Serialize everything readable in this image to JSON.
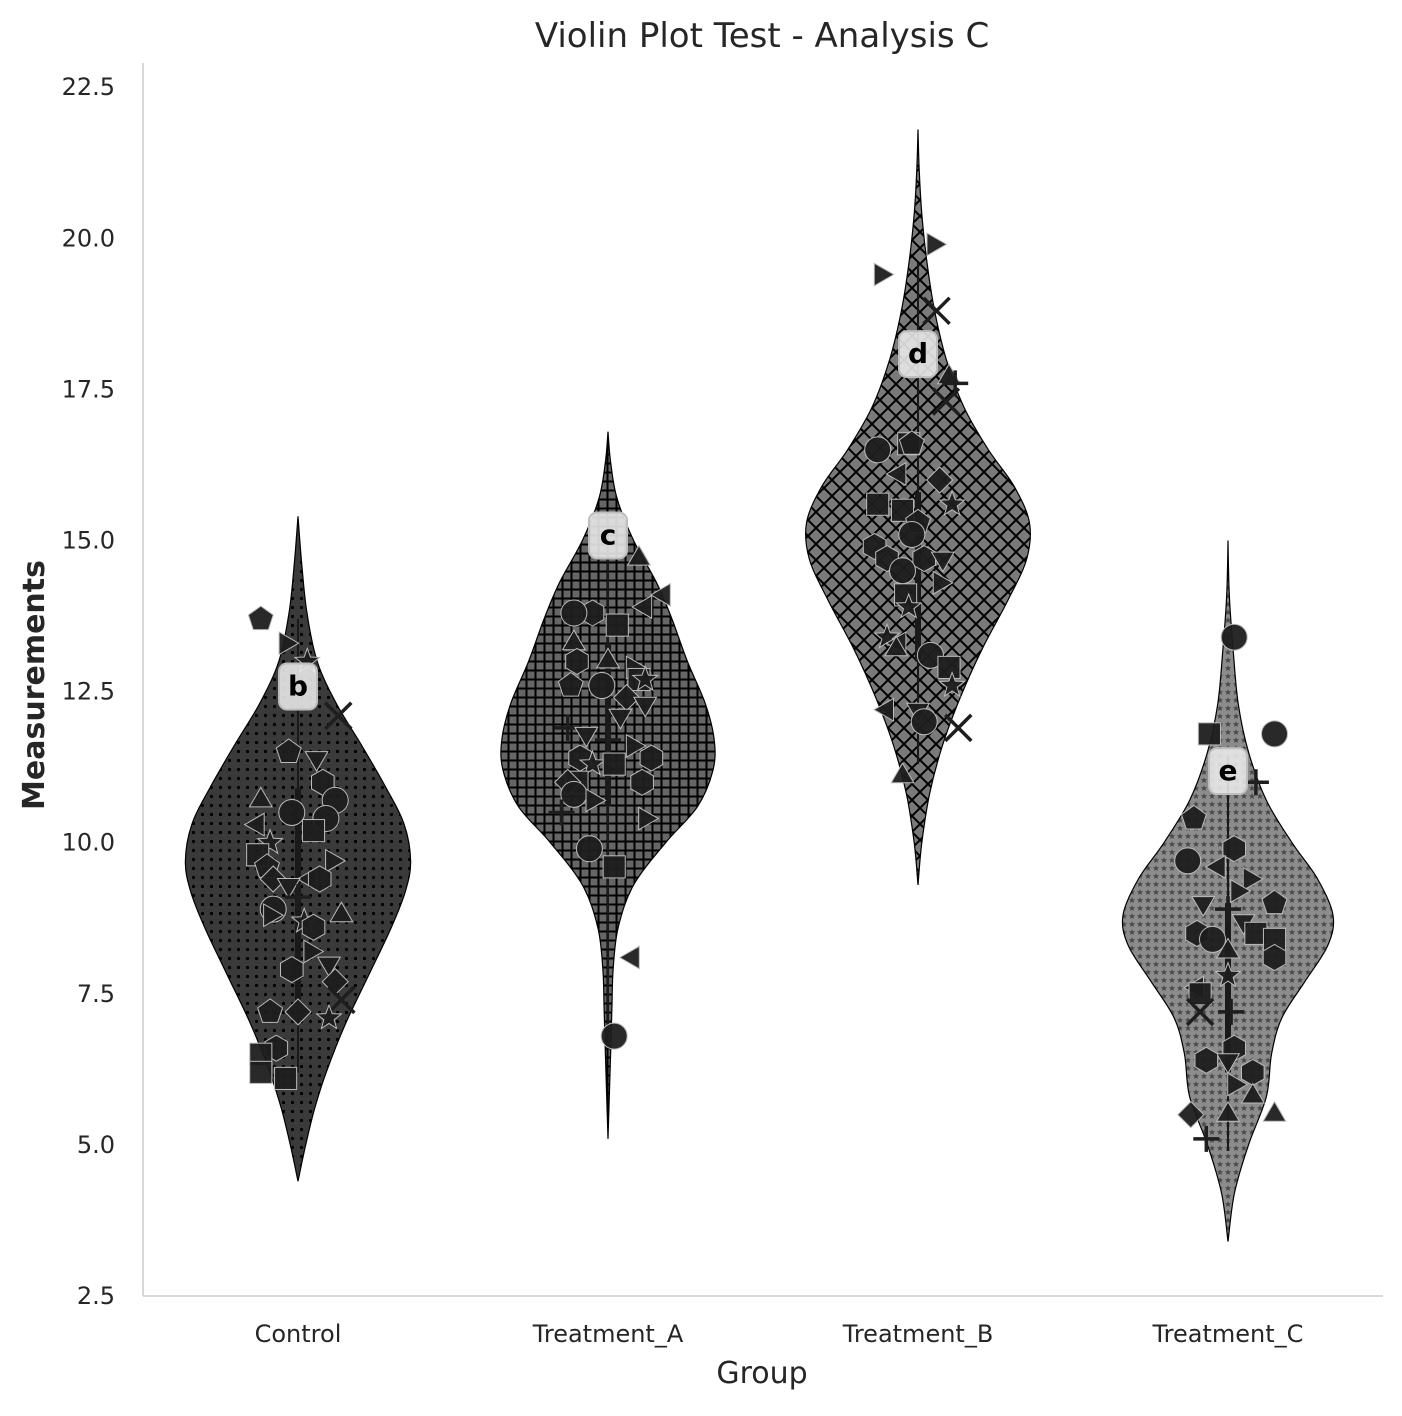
{
  "chart_data": {
    "type": "violin",
    "title": "Violin Plot Test - Analysis C",
    "xlabel": "Group",
    "ylabel": "Measurements",
    "ylim": [
      2.5,
      22.9
    ],
    "yticks": [
      "2.5",
      "5.0",
      "7.5",
      "10.0",
      "12.5",
      "15.0",
      "17.5",
      "20.0",
      "22.5"
    ],
    "grid": false,
    "categories": [
      "Control",
      "Treatment_A",
      "Treatment_B",
      "Treatment_C"
    ],
    "groups": [
      {
        "name": "Control",
        "letter": "b",
        "letter_y": 12.6,
        "fill": "#3a3a3a",
        "pattern": "dots",
        "min": 4.4,
        "max": 15.4,
        "density": [
          [
            4.4,
            0.0
          ],
          [
            5.0,
            0.06
          ],
          [
            5.6,
            0.13
          ],
          [
            6.2,
            0.22
          ],
          [
            7.0,
            0.37
          ],
          [
            7.8,
            0.55
          ],
          [
            8.6,
            0.73
          ],
          [
            9.2,
            0.84
          ],
          [
            9.7,
            0.88
          ],
          [
            10.3,
            0.83
          ],
          [
            10.9,
            0.69
          ],
          [
            11.6,
            0.5
          ],
          [
            12.3,
            0.3
          ],
          [
            13.0,
            0.15
          ],
          [
            13.8,
            0.07
          ],
          [
            14.6,
            0.03
          ],
          [
            15.4,
            0.0
          ]
        ],
        "median": 9.5,
        "q1": 7.4,
        "q3": 10.9,
        "whisker": [
          6.2,
          13.7
        ],
        "points": [
          [
            -0.12,
            13.7,
            "pentagon"
          ],
          [
            -0.04,
            13.3,
            "triangle-right"
          ],
          [
            0.03,
            13.0,
            "star"
          ],
          [
            0.13,
            12.1,
            "x"
          ],
          [
            -0.03,
            11.5,
            "pentagon"
          ],
          [
            0.06,
            11.4,
            "triangle-down"
          ],
          [
            0.08,
            11.0,
            "hexagon"
          ],
          [
            0.12,
            10.7,
            "circle"
          ],
          [
            -0.12,
            10.7,
            "triangle-up"
          ],
          [
            -0.02,
            10.5,
            "circle"
          ],
          [
            0.09,
            10.4,
            "circle"
          ],
          [
            -0.13,
            10.3,
            "triangle-left"
          ],
          [
            0.05,
            10.2,
            "square"
          ],
          [
            -0.09,
            10.0,
            "star"
          ],
          [
            -0.13,
            9.8,
            "square"
          ],
          [
            0.11,
            9.7,
            "triangle-right"
          ],
          [
            -0.1,
            9.6,
            "pentagon"
          ],
          [
            -0.08,
            9.4,
            "diamond"
          ],
          [
            0.04,
            9.4,
            "triangle-left"
          ],
          [
            -0.03,
            9.3,
            "triangle-down"
          ],
          [
            0.07,
            9.4,
            "hexagon"
          ],
          [
            0.0,
            9.1,
            "plus"
          ],
          [
            -0.08,
            8.9,
            "circle"
          ],
          [
            0.02,
            8.7,
            "star"
          ],
          [
            0.14,
            8.8,
            "triangle-up"
          ],
          [
            -0.09,
            8.8,
            "triangle-right"
          ],
          [
            0.05,
            8.6,
            "hexagon"
          ],
          [
            0.04,
            8.2,
            "triangle-right"
          ],
          [
            0.1,
            8.0,
            "triangle-down"
          ],
          [
            -0.02,
            7.9,
            "hexagon"
          ],
          [
            0.12,
            7.7,
            "diamond"
          ],
          [
            0.14,
            7.4,
            "x"
          ],
          [
            0.0,
            7.2,
            "diamond"
          ],
          [
            -0.09,
            7.2,
            "pentagon"
          ],
          [
            0.1,
            7.1,
            "star"
          ],
          [
            -0.07,
            6.6,
            "hexagon"
          ],
          [
            -0.12,
            6.5,
            "square"
          ],
          [
            -0.12,
            6.2,
            "square"
          ],
          [
            -0.04,
            6.1,
            "square"
          ]
        ]
      },
      {
        "name": "Treatment_A",
        "letter": "c",
        "letter_y": 15.1,
        "fill": "#666666",
        "pattern": "grid",
        "min": 5.1,
        "max": 16.8,
        "density": [
          [
            5.1,
            0.0
          ],
          [
            5.8,
            0.01
          ],
          [
            6.5,
            0.02
          ],
          [
            7.2,
            0.03
          ],
          [
            7.9,
            0.04
          ],
          [
            8.6,
            0.08
          ],
          [
            9.3,
            0.2
          ],
          [
            10.0,
            0.45
          ],
          [
            10.6,
            0.7
          ],
          [
            11.2,
            0.82
          ],
          [
            11.7,
            0.83
          ],
          [
            12.3,
            0.76
          ],
          [
            13.0,
            0.62
          ],
          [
            13.7,
            0.5
          ],
          [
            14.3,
            0.38
          ],
          [
            15.0,
            0.2
          ],
          [
            15.7,
            0.07
          ],
          [
            16.3,
            0.02
          ],
          [
            16.8,
            0.0
          ]
        ],
        "median": 11.9,
        "q1": 10.6,
        "q3": 13.3,
        "whisker": [
          6.8,
          15.3
        ],
        "points": [
          [
            0.1,
            14.7,
            "triangle-up"
          ],
          [
            0.18,
            14.1,
            "triangle-left"
          ],
          [
            0.12,
            13.9,
            "triangle-left"
          ],
          [
            -0.05,
            13.8,
            "hexagon"
          ],
          [
            -0.11,
            13.8,
            "circle"
          ],
          [
            0.03,
            13.6,
            "square"
          ],
          [
            -0.11,
            13.3,
            "triangle-up"
          ],
          [
            -0.1,
            13.0,
            "hexagon"
          ],
          [
            0.0,
            13.0,
            "triangle-up"
          ],
          [
            0.08,
            12.9,
            "triangle-right"
          ],
          [
            0.1,
            12.7,
            "square"
          ],
          [
            0.12,
            12.7,
            "star"
          ],
          [
            -0.12,
            12.6,
            "pentagon"
          ],
          [
            -0.02,
            12.6,
            "circle"
          ],
          [
            0.06,
            12.4,
            "diamond"
          ],
          [
            0.12,
            12.3,
            "triangle-down"
          ],
          [
            0.04,
            12.1,
            "triangle-down"
          ],
          [
            -0.13,
            11.9,
            "plus"
          ],
          [
            -0.07,
            11.8,
            "triangle-down"
          ],
          [
            0.0,
            11.7,
            "plus"
          ],
          [
            0.08,
            11.6,
            "triangle-right"
          ],
          [
            0.14,
            11.4,
            "hexagon"
          ],
          [
            -0.09,
            11.4,
            "hexagon"
          ],
          [
            -0.05,
            11.3,
            "star"
          ],
          [
            0.02,
            11.3,
            "square"
          ],
          [
            -0.1,
            11.0,
            "square"
          ],
          [
            -0.13,
            11.0,
            "diamond"
          ],
          [
            0.11,
            11.0,
            "hexagon"
          ],
          [
            -0.11,
            10.8,
            "circle"
          ],
          [
            -0.05,
            10.7,
            "triangle-right"
          ],
          [
            -0.15,
            10.5,
            "plus"
          ],
          [
            0.12,
            10.4,
            "triangle-right"
          ],
          [
            -0.06,
            9.9,
            "circle"
          ],
          [
            0.02,
            9.6,
            "square"
          ],
          [
            0.08,
            8.1,
            "triangle-left"
          ],
          [
            0.02,
            6.8,
            "circle"
          ]
        ]
      },
      {
        "name": "Treatment_B",
        "letter": "d",
        "letter_y": 18.1,
        "fill": "#7a7a7a",
        "pattern": "crosshatch",
        "min": 9.3,
        "max": 21.8,
        "density": [
          [
            9.3,
            0.0
          ],
          [
            10.0,
            0.03
          ],
          [
            10.8,
            0.09
          ],
          [
            11.6,
            0.19
          ],
          [
            12.4,
            0.33
          ],
          [
            13.2,
            0.5
          ],
          [
            14.0,
            0.7
          ],
          [
            14.7,
            0.85
          ],
          [
            15.3,
            0.87
          ],
          [
            15.9,
            0.75
          ],
          [
            16.5,
            0.55
          ],
          [
            17.2,
            0.36
          ],
          [
            18.0,
            0.22
          ],
          [
            18.8,
            0.13
          ],
          [
            19.6,
            0.07
          ],
          [
            20.4,
            0.03
          ],
          [
            21.1,
            0.01
          ],
          [
            21.8,
            0.0
          ]
        ],
        "median": 14.5,
        "q1": 13.0,
        "q3": 15.8,
        "whisker": [
          11.3,
          19.6
        ],
        "points": [
          [
            0.05,
            19.9,
            "triangle-right"
          ],
          [
            -0.12,
            19.4,
            "triangle-right"
          ],
          [
            0.06,
            18.8,
            "x"
          ],
          [
            0.1,
            17.7,
            "triangle-up"
          ],
          [
            0.12,
            17.6,
            "plus"
          ],
          [
            0.09,
            17.3,
            "x"
          ],
          [
            -0.13,
            16.5,
            "circle"
          ],
          [
            -0.03,
            16.6,
            "square"
          ],
          [
            -0.02,
            16.6,
            "pentagon"
          ],
          [
            -0.06,
            16.1,
            "triangle-left"
          ],
          [
            0.07,
            16.0,
            "diamond"
          ],
          [
            0.11,
            15.6,
            "star"
          ],
          [
            -0.13,
            15.6,
            "square"
          ],
          [
            -0.05,
            15.5,
            "square"
          ],
          [
            0.0,
            15.3,
            "pentagon"
          ],
          [
            -0.02,
            15.1,
            "circle"
          ],
          [
            -0.14,
            14.9,
            "hexagon"
          ],
          [
            -0.1,
            14.7,
            "hexagon"
          ],
          [
            0.02,
            14.7,
            "hexagon"
          ],
          [
            0.08,
            14.7,
            "triangle-down"
          ],
          [
            -0.05,
            14.5,
            "circle"
          ],
          [
            0.07,
            14.3,
            "triangle-right"
          ],
          [
            -0.04,
            14.1,
            "square"
          ],
          [
            -0.03,
            13.9,
            "star"
          ],
          [
            -0.1,
            13.4,
            "star"
          ],
          [
            -0.06,
            13.3,
            "triangle-left"
          ],
          [
            -0.07,
            13.2,
            "triangle-up"
          ],
          [
            0.04,
            13.1,
            "circle"
          ],
          [
            0.1,
            12.9,
            "square"
          ],
          [
            0.11,
            12.6,
            "star"
          ],
          [
            -0.1,
            12.2,
            "triangle-left"
          ],
          [
            0.0,
            12.2,
            "triangle-down"
          ],
          [
            0.02,
            12.0,
            "circle"
          ],
          [
            0.13,
            11.9,
            "x"
          ],
          [
            -0.05,
            11.1,
            "triangle-up"
          ]
        ]
      },
      {
        "name": "Treatment_C",
        "letter": "e",
        "letter_y": 11.2,
        "fill": "#8c8c8c",
        "pattern": "stars",
        "min": 3.4,
        "max": 15.0,
        "density": [
          [
            3.4,
            0.0
          ],
          [
            4.2,
            0.05
          ],
          [
            5.0,
            0.16
          ],
          [
            5.8,
            0.3
          ],
          [
            6.5,
            0.34
          ],
          [
            7.1,
            0.42
          ],
          [
            7.7,
            0.6
          ],
          [
            8.3,
            0.78
          ],
          [
            8.8,
            0.82
          ],
          [
            9.4,
            0.7
          ],
          [
            10.0,
            0.5
          ],
          [
            10.7,
            0.3
          ],
          [
            11.5,
            0.16
          ],
          [
            12.3,
            0.08
          ],
          [
            13.2,
            0.04
          ],
          [
            14.1,
            0.01
          ],
          [
            15.0,
            0.0
          ]
        ],
        "median": 7.8,
        "q1": 6.2,
        "q3": 9.0,
        "whisker": [
          4.9,
          11.4
        ],
        "points": [
          [
            0.02,
            13.4,
            "circle"
          ],
          [
            0.15,
            11.8,
            "circle"
          ],
          [
            -0.06,
            11.8,
            "square"
          ],
          [
            0.09,
            11.0,
            "plus"
          ],
          [
            -0.11,
            10.4,
            "pentagon"
          ],
          [
            0.02,
            9.9,
            "hexagon"
          ],
          [
            -0.13,
            9.7,
            "circle"
          ],
          [
            -0.03,
            9.6,
            "triangle-left"
          ],
          [
            0.07,
            9.4,
            "triangle-right"
          ],
          [
            0.03,
            9.2,
            "triangle-right"
          ],
          [
            0.15,
            9.0,
            "pentagon"
          ],
          [
            -0.08,
            9.0,
            "triangle-down"
          ],
          [
            0.0,
            8.9,
            "plus"
          ],
          [
            0.05,
            8.7,
            "triangle-down"
          ],
          [
            -0.1,
            8.5,
            "hexagon"
          ],
          [
            0.09,
            8.5,
            "square"
          ],
          [
            -0.05,
            8.4,
            "circle"
          ],
          [
            0.15,
            8.4,
            "square"
          ],
          [
            0.0,
            8.2,
            "triangle-up"
          ],
          [
            0.15,
            8.1,
            "hexagon"
          ],
          [
            0.0,
            7.8,
            "star"
          ],
          [
            -0.1,
            7.6,
            "triangle-left"
          ],
          [
            -0.09,
            7.5,
            "square"
          ],
          [
            -0.09,
            7.2,
            "x"
          ],
          [
            0.01,
            7.2,
            "plus"
          ],
          [
            0.02,
            6.6,
            "hexagon"
          ],
          [
            0.0,
            6.4,
            "triangle-down"
          ],
          [
            -0.07,
            6.4,
            "hexagon"
          ],
          [
            0.08,
            6.2,
            "hexagon"
          ],
          [
            0.02,
            6.0,
            "triangle-right"
          ],
          [
            0.08,
            5.8,
            "triangle-up"
          ],
          [
            -0.12,
            5.5,
            "diamond"
          ],
          [
            0.0,
            5.5,
            "triangle-up"
          ],
          [
            0.15,
            5.5,
            "triangle-up"
          ],
          [
            -0.07,
            5.1,
            "plus"
          ]
        ]
      }
    ]
  }
}
